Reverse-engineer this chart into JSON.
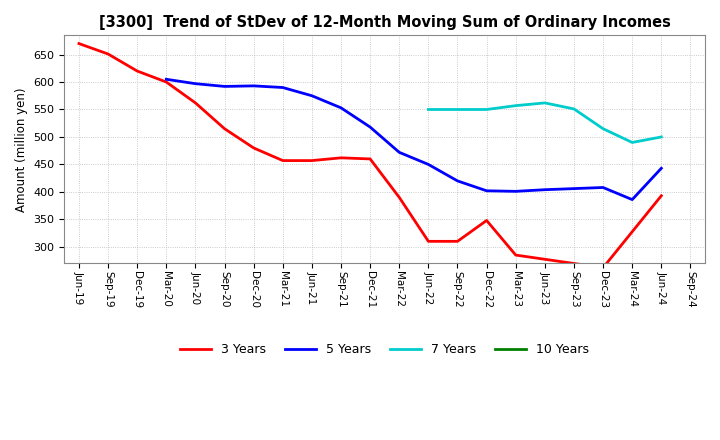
{
  "title": "[3300]  Trend of StDev of 12-Month Moving Sum of Ordinary Incomes",
  "ylabel": "Amount (million yen)",
  "background_color": "#ffffff",
  "grid_color": "#aaaaaa",
  "ylim": [
    270,
    685
  ],
  "yticks": [
    300,
    350,
    400,
    450,
    500,
    550,
    600,
    650
  ],
  "x_labels": [
    "Jun-19",
    "Sep-19",
    "Dec-19",
    "Mar-20",
    "Jun-20",
    "Sep-20",
    "Dec-20",
    "Mar-21",
    "Jun-21",
    "Sep-21",
    "Dec-21",
    "Mar-22",
    "Jun-22",
    "Sep-22",
    "Dec-22",
    "Mar-23",
    "Jun-23",
    "Sep-23",
    "Dec-23",
    "Mar-24",
    "Jun-24",
    "Sep-24"
  ],
  "series": {
    "3 Years": {
      "color": "#ff0000",
      "linewidth": 2.0,
      "data_x": [
        0,
        1,
        2,
        3,
        4,
        5,
        6,
        7,
        8,
        9,
        10,
        11,
        12,
        13,
        14,
        15,
        18,
        20
      ],
      "data_y": [
        670,
        651,
        620,
        600,
        562,
        515,
        480,
        457,
        457,
        462,
        460,
        390,
        310,
        310,
        348,
        285,
        262,
        393
      ]
    },
    "5 Years": {
      "color": "#0000ff",
      "linewidth": 2.0,
      "data_x": [
        3,
        4,
        5,
        6,
        7,
        8,
        9,
        10,
        11,
        12,
        13,
        14,
        15,
        16,
        17,
        18,
        19,
        20
      ],
      "data_y": [
        605,
        597,
        592,
        593,
        590,
        575,
        553,
        518,
        472,
        450,
        420,
        402,
        401,
        404,
        406,
        408,
        386,
        443
      ]
    },
    "7 Years": {
      "color": "#00cccc",
      "linewidth": 2.0,
      "data_x": [
        12,
        13,
        14,
        15,
        16,
        17,
        18,
        19,
        20
      ],
      "data_y": [
        550,
        550,
        550,
        557,
        562,
        551,
        515,
        490,
        500
      ]
    },
    "10 Years": {
      "color": "#008000",
      "linewidth": 2.0,
      "data_x": [],
      "data_y": []
    }
  },
  "legend_order": [
    "3 Years",
    "5 Years",
    "7 Years",
    "10 Years"
  ]
}
